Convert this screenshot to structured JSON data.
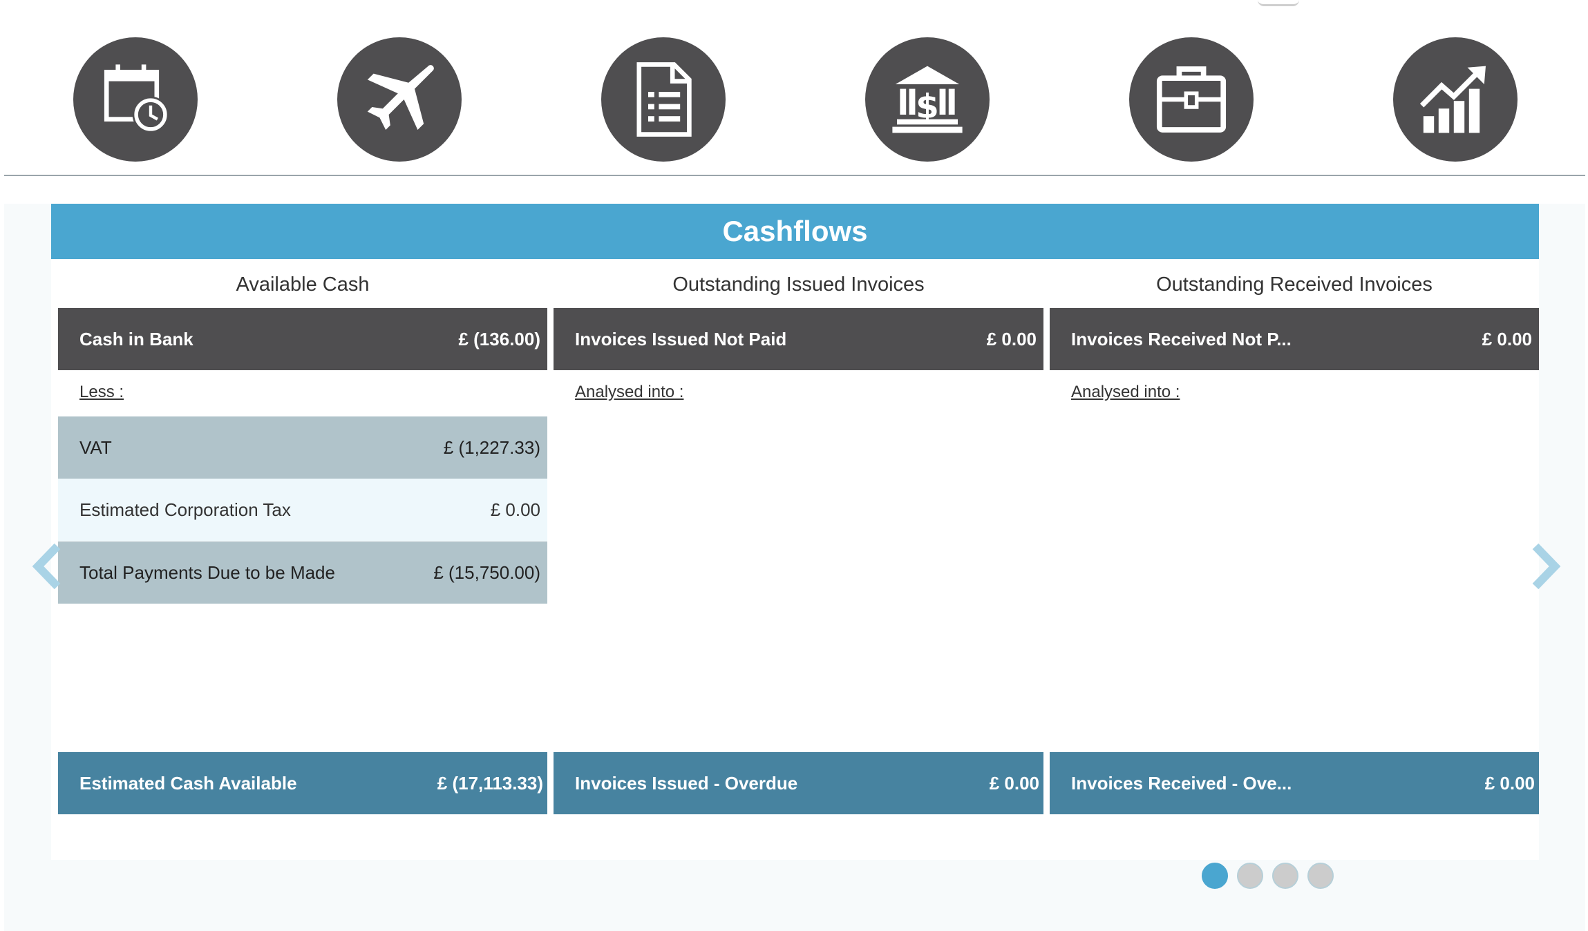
{
  "icons": [
    {
      "name": "calendar-clock-icon"
    },
    {
      "name": "airplane-icon"
    },
    {
      "name": "document-list-icon"
    },
    {
      "name": "bank-dollar-icon"
    },
    {
      "name": "briefcase-icon"
    },
    {
      "name": "growth-chart-icon"
    }
  ],
  "colors": {
    "banner": "#4aa6d0",
    "dark_row": "#4f4e50",
    "bottom_row": "#4783a0",
    "grey_row": "#b0c3ca",
    "light_row": "#eef8fc",
    "active_dot": "#4aa6d0"
  },
  "banner": {
    "title": "Cashflows"
  },
  "columns": {
    "available": {
      "heading": "Available Cash",
      "header_label": "Cash in Bank",
      "header_value": "£ (136.00)",
      "sub_label": "Less :",
      "items": [
        {
          "label": "VAT",
          "value": "£ (1,227.33)"
        },
        {
          "label": "Estimated Corporation Tax",
          "value": "£ 0.00"
        },
        {
          "label": "Total Payments Due to be Made",
          "value": "£ (15,750.00)"
        }
      ],
      "footer_label": "Estimated Cash Available",
      "footer_value": "£ (17,113.33)"
    },
    "issued": {
      "heading": "Outstanding Issued Invoices",
      "header_label": "Invoices Issued Not Paid",
      "header_value": "£ 0.00",
      "sub_label": "Analysed into :",
      "footer_label": "Invoices Issued - Overdue",
      "footer_value": "£ 0.00"
    },
    "received": {
      "heading": "Outstanding Received Invoices",
      "header_label": "Invoices Received Not P...",
      "header_value": "£ 0.00",
      "sub_label": "Analysed into :",
      "footer_label": "Invoices Received - Ove...",
      "footer_value": "£ 0.00"
    }
  },
  "carousel": {
    "slide_count": 4,
    "active_index": 0
  }
}
